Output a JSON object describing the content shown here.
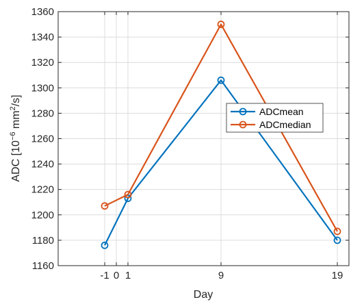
{
  "chart_data": {
    "type": "line",
    "xlabel": "Day",
    "ylabel": "ADC [10",
    "ylabel_exponent": "−6",
    "ylabel_unit_main": " mm",
    "ylabel_unit_sup": "2",
    "ylabel_unit_end": "/s]",
    "x": [
      -1,
      1,
      9,
      19
    ],
    "xlim": [
      -5,
      20
    ],
    "ylim": [
      1160,
      1360
    ],
    "xticks": [
      -1,
      0,
      1,
      9,
      19
    ],
    "xtick_labels": [
      "-1",
      "0",
      "1",
      "9",
      "19"
    ],
    "yticks": [
      1160,
      1180,
      1200,
      1220,
      1240,
      1260,
      1280,
      1300,
      1320,
      1340,
      1360
    ],
    "ytick_labels": [
      "1160",
      "1180",
      "1200",
      "1220",
      "1240",
      "1260",
      "1280",
      "1300",
      "1320",
      "1340",
      "1360"
    ],
    "grid": true,
    "legend_position": "right-center",
    "series": [
      {
        "name": "ADCmean",
        "color": "#0072BD",
        "values": [
          1176,
          1213,
          1306,
          1180
        ]
      },
      {
        "name": "ADCmedian",
        "color": "#D95319",
        "values": [
          1207,
          1216,
          1350,
          1187
        ]
      }
    ]
  }
}
